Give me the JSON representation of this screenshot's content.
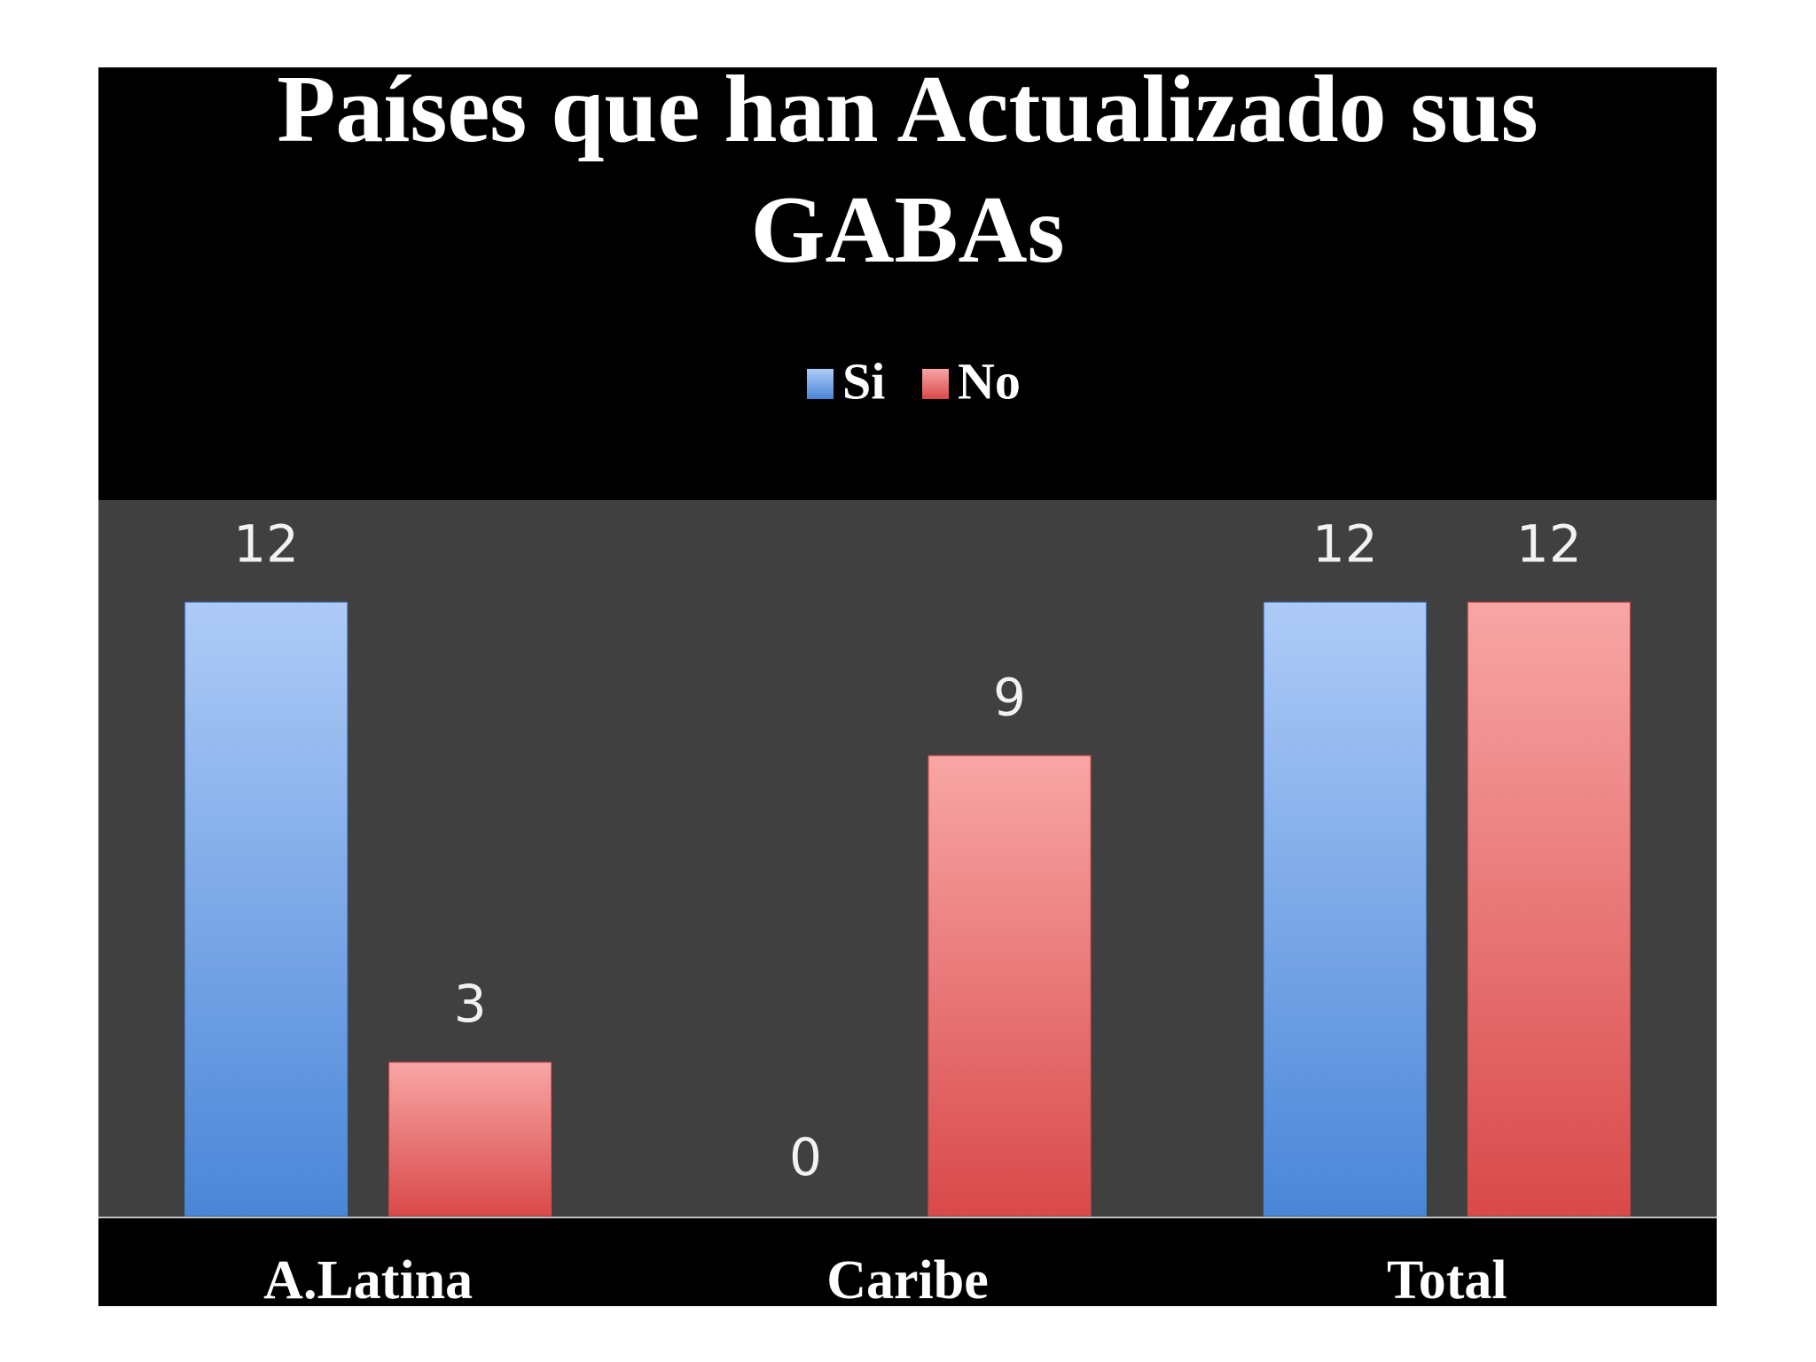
{
  "chart_data": {
    "type": "bar",
    "title": "Países que han Actualizado sus GABAs",
    "categories": [
      "A.Latina",
      "Caribe",
      "Total"
    ],
    "series": [
      {
        "name": "Si",
        "color": "#4a86d8",
        "values": [
          12,
          0,
          12
        ]
      },
      {
        "name": "No",
        "color": "#d9494a",
        "values": [
          3,
          9,
          12
        ]
      }
    ],
    "ylim": [
      0,
      14
    ],
    "legend": "top"
  }
}
